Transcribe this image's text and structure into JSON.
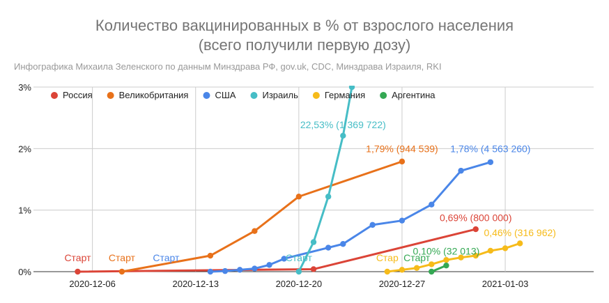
{
  "chart_data": {
    "type": "line",
    "title_lines": [
      "Количество вакцинированных в % от взрослого населения",
      "(всего получили первую дозу)"
    ],
    "subtitle": "Инфографика Михаила Зеленского по данным Минздрава РФ, gov.uk, CDC, Минздрава Израиля, RKI",
    "x_ticks": [
      {
        "date": "2020-12-06",
        "label": "2020-12-06"
      },
      {
        "date": "2020-12-13",
        "label": "2020-12-13"
      },
      {
        "date": "2020-12-20",
        "label": "2020-12-20"
      },
      {
        "date": "2020-12-27",
        "label": "2020-12-27"
      },
      {
        "date": "2021-01-03",
        "label": "2021-01-03"
      }
    ],
    "xlim": [
      "2020-12-02",
      "2021-01-09"
    ],
    "y_ticks": [
      {
        "value": 0,
        "label": "0%"
      },
      {
        "value": 1,
        "label": "1%"
      },
      {
        "value": 2,
        "label": "2%"
      },
      {
        "value": 3,
        "label": "3%"
      }
    ],
    "ylim": [
      0,
      3
    ],
    "grid": true,
    "legend_position": "top",
    "series": [
      {
        "name": "Россия",
        "color": "#db4437",
        "points": [
          {
            "x": "2020-12-05",
            "y": 0.0
          },
          {
            "x": "2020-12-21",
            "y": 0.04
          },
          {
            "x": "2021-01-01",
            "y": 0.69
          }
        ],
        "start_label": {
          "text": "Старт",
          "x": "2020-12-05",
          "y": 0.17
        },
        "end_label": {
          "text": "0,69% (800 000)",
          "x": "2021-01-01",
          "y": 0.82
        }
      },
      {
        "name": "Великобритания",
        "color": "#e8711a",
        "points": [
          {
            "x": "2020-12-08",
            "y": 0.0
          },
          {
            "x": "2020-12-14",
            "y": 0.26
          },
          {
            "x": "2020-12-17",
            "y": 0.66
          },
          {
            "x": "2020-12-20",
            "y": 1.22
          },
          {
            "x": "2020-12-27",
            "y": 1.79
          }
        ],
        "start_label": {
          "text": "Старт",
          "x": "2020-12-08",
          "y": 0.17
        },
        "end_label": {
          "text": "1,79% (944 539)",
          "x": "2020-12-27",
          "y": 1.94
        }
      },
      {
        "name": "США",
        "color": "#4a86e8",
        "points": [
          {
            "x": "2020-12-14",
            "y": 0.0
          },
          {
            "x": "2020-12-15",
            "y": 0.01
          },
          {
            "x": "2020-12-16",
            "y": 0.03
          },
          {
            "x": "2020-12-17",
            "y": 0.05
          },
          {
            "x": "2020-12-18",
            "y": 0.11
          },
          {
            "x": "2020-12-19",
            "y": 0.21
          },
          {
            "x": "2020-12-22",
            "y": 0.39
          },
          {
            "x": "2020-12-23",
            "y": 0.45
          },
          {
            "x": "2020-12-25",
            "y": 0.76
          },
          {
            "x": "2020-12-27",
            "y": 0.83
          },
          {
            "x": "2020-12-29",
            "y": 1.09
          },
          {
            "x": "2020-12-31",
            "y": 1.64
          },
          {
            "x": "2021-01-02",
            "y": 1.78
          }
        ],
        "start_label": {
          "text": "Старт",
          "x": "2020-12-11",
          "y": 0.17
        },
        "end_label": {
          "text": "1,78% (4 563 260)",
          "x": "2021-01-02",
          "y": 1.94
        }
      },
      {
        "name": "Израиль",
        "color": "#46bdc6",
        "points": [
          {
            "x": "2020-12-20",
            "y": 0.0
          },
          {
            "x": "2020-12-21",
            "y": 0.48
          },
          {
            "x": "2020-12-22",
            "y": 1.22
          },
          {
            "x": "2020-12-23",
            "y": 2.21
          },
          {
            "x": "2020-12-23.6",
            "y": 3.0
          }
        ],
        "start_label": {
          "text": "Старт",
          "x": "2020-12-20",
          "y": 0.17
        },
        "end_label": {
          "text": "22,53% (1 369 722)",
          "x": "2020-12-23",
          "y": 2.33
        }
      },
      {
        "name": "Германия",
        "color": "#f6bb1a",
        "points": [
          {
            "x": "2020-12-26",
            "y": 0.0
          },
          {
            "x": "2020-12-27",
            "y": 0.03
          },
          {
            "x": "2020-12-28",
            "y": 0.06
          },
          {
            "x": "2020-12-29",
            "y": 0.12
          },
          {
            "x": "2020-12-30",
            "y": 0.19
          },
          {
            "x": "2020-12-31",
            "y": 0.23
          },
          {
            "x": "2021-01-01",
            "y": 0.26
          },
          {
            "x": "2021-01-02",
            "y": 0.34
          },
          {
            "x": "2021-01-03",
            "y": 0.38
          },
          {
            "x": "2021-01-04",
            "y": 0.46
          }
        ],
        "start_label": {
          "text": "Стар",
          "x": "2020-12-26",
          "y": 0.17
        },
        "end_label": {
          "text": "0,46% (316 962)",
          "x": "2021-01-04",
          "y": 0.58
        }
      },
      {
        "name": "Аргентина",
        "color": "#34a853",
        "points": [
          {
            "x": "2020-12-29",
            "y": 0.0
          },
          {
            "x": "2020-12-30",
            "y": 0.1
          }
        ],
        "start_label": {
          "text": "Старт",
          "x": "2020-12-28",
          "y": 0.17
        },
        "end_label": {
          "text": "0,10% (32 013)",
          "x": "2020-12-30",
          "y": 0.28
        }
      }
    ]
  }
}
